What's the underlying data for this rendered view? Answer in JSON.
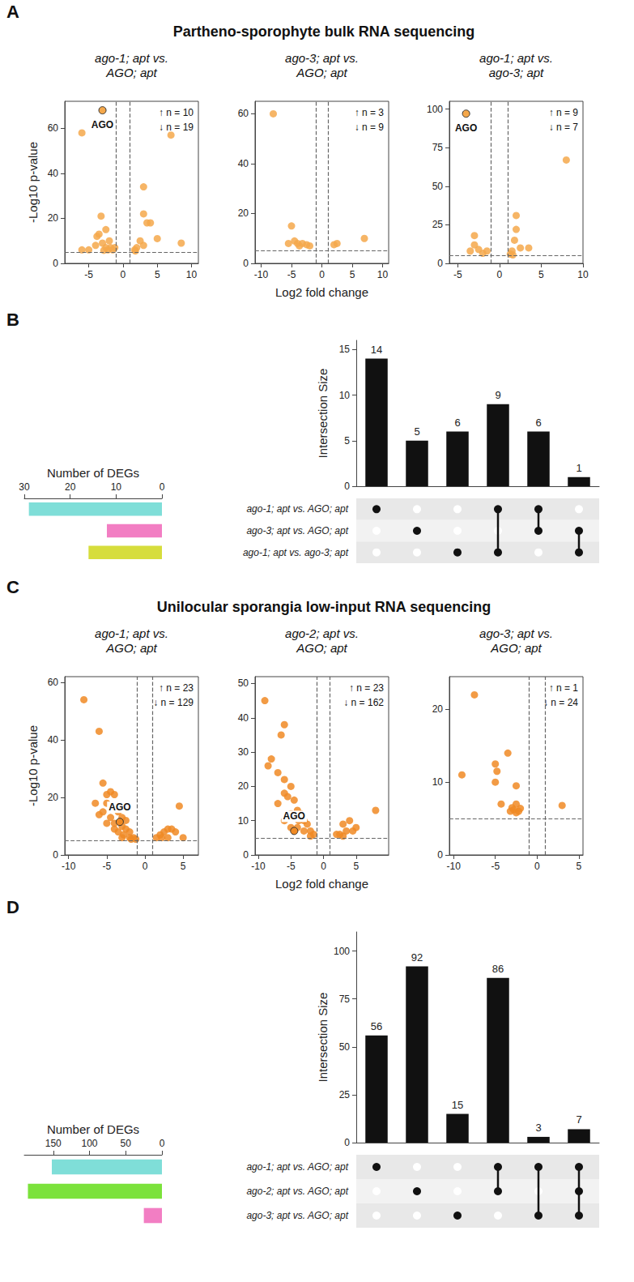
{
  "chart_data": [
    {
      "type": "scatter",
      "panel": "A",
      "title": "Partheno-sporophyte bulk RNA sequencing",
      "subtitle": "ago-1; apt vs. AGO; apt",
      "y_label": "-Log10 p-value",
      "color": "#f5a84b",
      "x": [
        -6,
        7,
        3,
        3,
        3.5,
        -3.2,
        -3.5,
        -2.5,
        5,
        8.5,
        -2,
        -3,
        -4,
        -5,
        -6,
        -2.5,
        -1.8,
        -1.5,
        -2.2,
        2.5,
        2,
        1.7,
        1.8,
        -3.8,
        -1.2,
        -2.8,
        3,
        4
      ],
      "values": [
        58,
        57,
        34,
        22,
        18,
        21,
        13,
        15,
        11,
        9,
        10,
        9,
        8,
        6,
        6,
        7,
        7,
        6,
        6,
        10,
        7,
        6,
        5.5,
        12,
        7,
        5.8,
        8,
        18
      ],
      "highlight": {
        "label": "AGO",
        "x": -3,
        "y": 68
      },
      "thresholds": {
        "x": [
          -1,
          1
        ],
        "y": 5
      },
      "annotations": [
        "↑ n = 10",
        "↓ n = 19"
      ],
      "xlim": [
        -8.5,
        11
      ],
      "xticks": [
        -5,
        0,
        5,
        10
      ],
      "ylim": [
        0,
        72
      ],
      "yticks": [
        0,
        20,
        40,
        60
      ]
    },
    {
      "type": "scatter",
      "subtitle": "ago-3; apt vs. AGO; apt",
      "x_label": "Log2 fold change",
      "color": "#f5a84b",
      "x": [
        -8,
        -5,
        -4.5,
        -5.5,
        -4,
        -3.2,
        -2.5,
        -3.7,
        -2,
        2,
        2.5,
        7
      ],
      "values": [
        60,
        15,
        9,
        8,
        8,
        8,
        7.5,
        7,
        7,
        7.5,
        8,
        10
      ],
      "thresholds": {
        "x": [
          -1,
          1
        ],
        "y": 5
      },
      "annotations": [
        "↑ n = 3",
        "↓ n = 9"
      ],
      "xlim": [
        -11,
        11
      ],
      "xticks": [
        -10,
        -5,
        0,
        5,
        10
      ],
      "ylim": [
        0,
        65
      ],
      "yticks": [
        0,
        20,
        40,
        60
      ]
    },
    {
      "type": "scatter",
      "subtitle": "ago-1; apt vs. ago-3; apt",
      "color": "#f5a84b",
      "x": [
        8,
        2,
        -3,
        2,
        1.8,
        -3,
        -2.5,
        -3.5,
        -1.5,
        2.5,
        3.5,
        1.5,
        1.3,
        1.6,
        -2
      ],
      "values": [
        67,
        31,
        18,
        22,
        15,
        12,
        9,
        8,
        8,
        10,
        10,
        8,
        6,
        5.5,
        6.5
      ],
      "highlight": {
        "label": "AGO",
        "x": -4,
        "y": 97
      },
      "thresholds": {
        "x": [
          -1,
          1
        ],
        "y": 5
      },
      "annotations": [
        "↑ n = 9",
        "↓ n = 7"
      ],
      "xlim": [
        -6,
        10
      ],
      "xticks": [
        -5,
        0,
        5,
        10
      ],
      "ylim": [
        0,
        105
      ],
      "yticks": [
        0,
        25,
        50,
        75,
        100
      ]
    },
    {
      "type": "upset",
      "panel": "B",
      "y_label": "Intersection Size",
      "x_label": "Number of DEGs",
      "data_labels": true,
      "sets": [
        {
          "name": "ago-1; apt vs. AGO; apt",
          "size": 29,
          "color": "#7fded8"
        },
        {
          "name": "ago-3; apt vs. AGO; apt",
          "size": 12,
          "color": "#f27ec3"
        },
        {
          "name": "ago-1; apt vs. ago-3; apt",
          "size": 16,
          "color": "#d6dd3c"
        }
      ],
      "intersections": [
        {
          "members": [
            true,
            false,
            false
          ],
          "value": 14
        },
        {
          "members": [
            false,
            true,
            false
          ],
          "value": 5
        },
        {
          "members": [
            false,
            false,
            true
          ],
          "value": 6
        },
        {
          "members": [
            true,
            false,
            true
          ],
          "value": 9
        },
        {
          "members": [
            true,
            true,
            false
          ],
          "value": 6
        },
        {
          "members": [
            false,
            true,
            true
          ],
          "value": 1
        }
      ],
      "ylim": [
        0,
        16
      ],
      "yticks": [
        0,
        5,
        10,
        15
      ],
      "xlim": [
        0,
        30
      ],
      "xticks": [
        0,
        10,
        20,
        30
      ]
    },
    {
      "type": "scatter",
      "panel": "C",
      "title": "Unilocular sporangia low-input RNA sequencing",
      "subtitle": "ago-1; apt vs. AGO; apt",
      "y_label": "-Log10 p-value",
      "color": "#f08a24",
      "x": [
        -8,
        -6,
        -6.5,
        -5.5,
        -5,
        -4.5,
        -4,
        -5,
        -4,
        -3.5,
        -3,
        -4.5,
        -6,
        -3,
        -2.5,
        -2,
        -1.5,
        -3.5,
        -4,
        -2,
        -2.8,
        -1.8,
        -5,
        -5.5,
        -3,
        -1.2,
        -2.5,
        -4,
        4.5,
        2.5,
        3,
        3.5,
        4,
        2,
        5,
        3,
        2.2,
        1.5
      ],
      "values": [
        54,
        43,
        18,
        25,
        21,
        22,
        21,
        18,
        17,
        15,
        13,
        13,
        14,
        10,
        9,
        8,
        6,
        8,
        9,
        6,
        7,
        5.5,
        11,
        15,
        6,
        5.5,
        12,
        11,
        17,
        8,
        9,
        9,
        8,
        7,
        6,
        6,
        6,
        6
      ],
      "highlight": {
        "label": "AGO",
        "x": -3.3,
        "y": 11.5
      },
      "thresholds": {
        "x": [
          -1,
          1
        ],
        "y": 5
      },
      "annotations": [
        "↑ n = 23",
        "↓ n = 129"
      ],
      "xlim": [
        -10.5,
        7
      ],
      "xticks": [
        -10,
        -5,
        0,
        5
      ],
      "ylim": [
        0,
        62
      ],
      "yticks": [
        0,
        20,
        40,
        60
      ]
    },
    {
      "type": "scatter",
      "subtitle": "ago-2; apt vs. AGO; apt",
      "x_label": "Log2 fold change",
      "color": "#f08a24",
      "x": [
        -9,
        -6,
        -6.5,
        -8,
        -8.5,
        -7,
        -6,
        -5,
        -6,
        -5.5,
        -4.5,
        -7,
        -4,
        -3.5,
        -5,
        -3,
        -2.5,
        -2,
        -1.5,
        -4,
        -3,
        -2,
        -6,
        -5,
        -3.8,
        8,
        4,
        5,
        3,
        3.5,
        4.5,
        2.5,
        2,
        3
      ],
      "values": [
        45,
        38,
        35,
        28,
        26,
        24,
        22,
        20,
        18,
        17,
        16,
        15,
        13,
        12,
        12,
        10,
        9,
        7,
        6,
        8,
        7,
        5.5,
        10,
        8,
        10,
        13,
        10,
        8,
        9,
        7,
        7,
        6,
        6,
        5.5
      ],
      "highlight": {
        "label": "AGO",
        "x": -4.5,
        "y": 7
      },
      "thresholds": {
        "x": [
          -1,
          1
        ],
        "y": 5
      },
      "annotations": [
        "↑ n = 23",
        "↓ n = 162"
      ],
      "xlim": [
        -10.5,
        10
      ],
      "xticks": [
        -10,
        -5,
        0,
        5
      ],
      "ylim": [
        0,
        52
      ],
      "yticks": [
        0,
        10,
        20,
        30,
        40,
        50
      ]
    },
    {
      "type": "scatter",
      "subtitle": "ago-3; apt vs. AGO; apt",
      "color": "#f08a24",
      "x": [
        -7.5,
        -9,
        -3.5,
        -5,
        -4.8,
        -5,
        -2.5,
        -4.3,
        -2.5,
        -3,
        -2.8,
        -2.2,
        -2.5,
        -3.2,
        -2,
        3
      ],
      "values": [
        22,
        11,
        14,
        12.5,
        11.5,
        10,
        9.5,
        7,
        7,
        6.5,
        6.2,
        6,
        5.8,
        6,
        6.4,
        6.8
      ],
      "thresholds": {
        "x": [
          -1,
          1
        ],
        "y": 5
      },
      "annotations": [
        "↑ n = 1",
        "↓ n = 24"
      ],
      "xlim": [
        -10.5,
        5.5
      ],
      "xticks": [
        -10,
        -5,
        0,
        5
      ],
      "ylim": [
        0,
        24.5
      ],
      "yticks": [
        0,
        10,
        20
      ]
    },
    {
      "type": "upset",
      "panel": "D",
      "y_label": "Intersection Size",
      "x_label": "Number of DEGs",
      "data_labels": true,
      "sets": [
        {
          "name": "ago-1; apt vs. AGO; apt",
          "size": 152,
          "color": "#7fded8"
        },
        {
          "name": "ago-2; apt vs. AGO; apt",
          "size": 185,
          "color": "#7be23b"
        },
        {
          "name": "ago-3; apt vs. AGO; apt",
          "size": 25,
          "color": "#f27ec3"
        }
      ],
      "intersections": [
        {
          "members": [
            true,
            false,
            false
          ],
          "value": 56
        },
        {
          "members": [
            false,
            true,
            false
          ],
          "value": 92
        },
        {
          "members": [
            false,
            false,
            true
          ],
          "value": 15
        },
        {
          "members": [
            true,
            true,
            false
          ],
          "value": 86
        },
        {
          "members": [
            true,
            false,
            true
          ],
          "value": 3
        },
        {
          "members": [
            true,
            true,
            true
          ],
          "value": 7
        }
      ],
      "ylim": [
        0,
        110
      ],
      "yticks": [
        0,
        25,
        50,
        75,
        100
      ],
      "xlim": [
        0,
        190
      ],
      "xticks": [
        0,
        50,
        100,
        150
      ]
    }
  ]
}
